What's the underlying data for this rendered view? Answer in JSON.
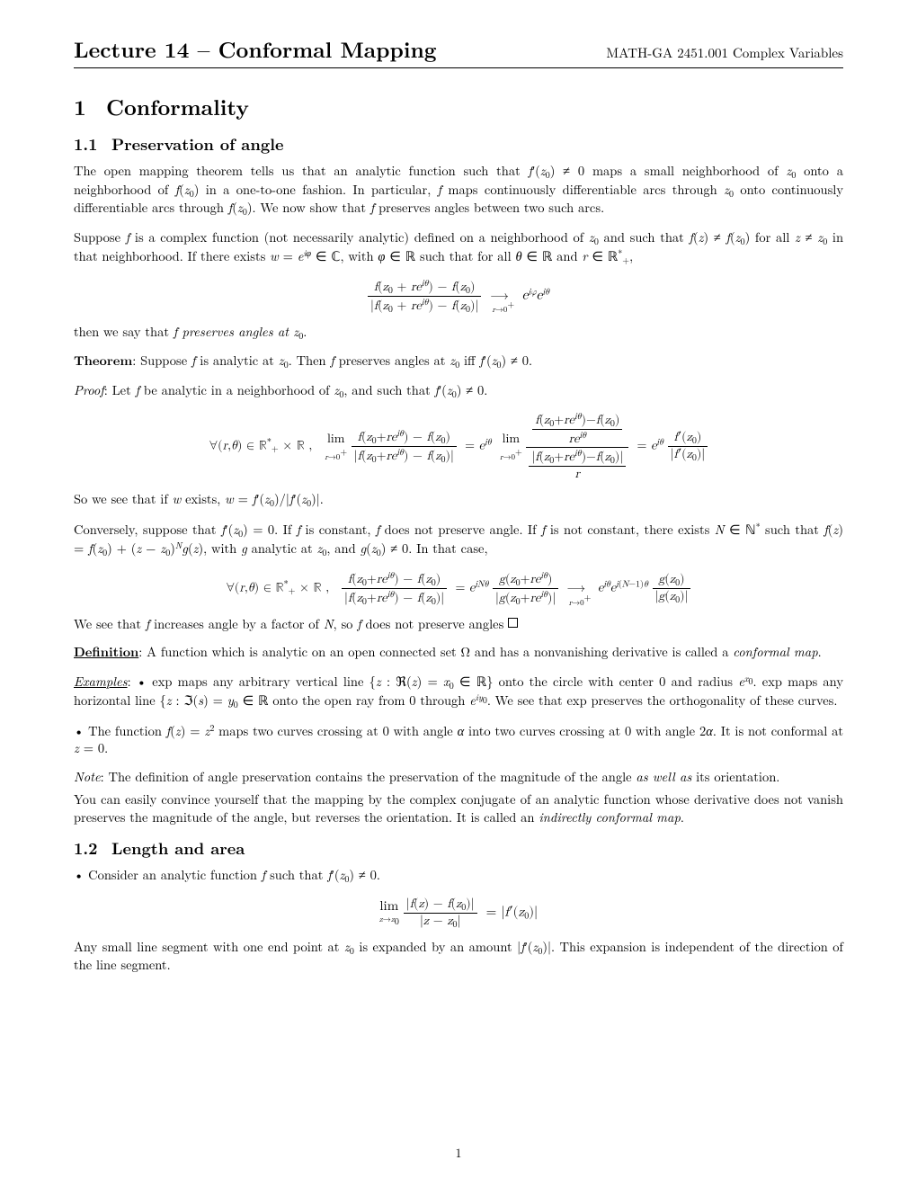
{
  "colors": {
    "text": "#000000",
    "background": "#ffffff",
    "rule": "#000000"
  },
  "fonts": {
    "body_family": "Latin Modern Roman / Computer Modern (serif)",
    "body_size_pt": 11,
    "title_size_pt": 17,
    "section_size_pt": 17,
    "subsection_size_pt": 13
  },
  "header": {
    "title": "Lecture 14 – Conformal Mapping",
    "course": "MATH-GA 2451.001 Complex Variables"
  },
  "section1": {
    "number": "1",
    "title": "Conformality"
  },
  "sub11": {
    "number": "1.1",
    "title": "Preservation of angle"
  },
  "p1": "The open mapping theorem tells us that an analytic function such that f′(z₀) ≠ 0 maps a small neighborhood of z₀ onto a neighborhood of f(z₀) in a one-to-one fashion. In particular, f maps continuously differentiable arcs through z₀ onto continuously differentiable arcs through f(z₀). We now show that f preserves angles between two such arcs.",
  "p2": "Suppose f is a complex function (not necessarily analytic) defined on a neighborhood of z₀ and such that f(z) ≠ f(z₀) for all z ≠ z₀ in that neighborhood. If there exists w = e^{iφ} ∈ ℂ, with φ ∈ ℝ such that for all θ ∈ ℝ and r ∈ ℝ*₊,",
  "eq1": "[f(z₀ + r e^{iθ}) − f(z₀)] / |f(z₀ + r e^{iθ}) − f(z₀)|  ⟶_{r→0⁺}  e^{iφ} e^{iθ}",
  "p3": "then we say that f preserves angles at z₀.",
  "theorem_label": "Theorem",
  "theorem_text": ": Suppose f is analytic at z₀. Then f preserves angles at z₀ iff f′(z₀) ≠ 0.",
  "proof_label": "Proof",
  "proof_intro": ": Let f be analytic in a neighborhood of z₀, and such that f′(z₀) ≠ 0.",
  "eq2": "∀(r,θ) ∈ ℝ*₊ × ℝ ,  lim_{r→0⁺} [f(z₀+re^{iθ})−f(z₀)] / |f(z₀+re^{iθ})−f(z₀)|  =  e^{iθ} lim_{r→0⁺} { [f(z₀+re^{iθ})−f(z₀)]/(re^{iθ}) } / { |f(z₀+re^{iθ})−f(z₀)|/r }  =  e^{iθ} f′(z₀)/|f′(z₀)|",
  "p4": "So we see that if w exists, w = f′(z₀)/|f′(z₀)|.",
  "p5": "Conversely, suppose that f′(z₀) = 0. If f is constant, f does not preserve angle. If f is not constant, there exists N ∈ ℕ* such that f(z) = f(z₀) + (z − z₀)^N g(z), with g analytic at z₀, and g(z₀) ≠ 0. In that case,",
  "eq3": "∀(r,θ) ∈ ℝ*₊ × ℝ ,  [f(z₀+re^{iθ})−f(z₀)] / |f(z₀+re^{iθ})−f(z₀)|  =  e^{iNθ} g(z₀+re^{iθ}) / |g(z₀+re^{iθ})|  ⟶_{r→0⁺}  e^{iθ} e^{i(N−1)θ} g(z₀)/|g(z₀)|",
  "p6": "We see that f increases angle by a factor of N, so f does not preserve angles □",
  "definition_label": "Definition",
  "definition_text": ": A function which is analytic on an open connected set Ω and has a nonvanishing derivative is called a conformal map.",
  "examples_label": "Examples",
  "ex1": ": • exp maps any arbitrary vertical line {z : ℜ(z) = x₀ ∈ ℝ} onto the circle with center 0 and radius e^{x₀}. exp maps any horizontal line {z : ℑ(s) = y₀ ∈ ℝ onto the open ray from 0 through e^{iy₀}. We see that exp preserves the orthogonality of these curves.",
  "ex2": "• The function f(z) = z² maps two curves crossing at 0 with angle α into two curves crossing at 0 with angle 2α. It is not conformal at z = 0.",
  "note_label": "Note",
  "note_text": ": The definition of angle preservation contains the preservation of the magnitude of the angle as well as its orientation.",
  "note_p2": "You can easily convince yourself that the mapping by the complex conjugate of an analytic function whose derivative does not vanish preserves the magnitude of the angle, but reverses the orientation. It is called an indirectly conformal map.",
  "sub12": {
    "number": "1.2",
    "title": "Length and area"
  },
  "p_la1": "• Consider an analytic function f such that f′(z₀) ≠ 0.",
  "eq4": "lim_{z→z₀} |f(z) − f(z₀)| / |z − z₀| = |f′(z₀)|",
  "p_la2": "Any small line segment with one end point at z₀ is expanded by an amount |f′(z₀)|. This expansion is independent of the direction of the line segment.",
  "page_number": "1"
}
